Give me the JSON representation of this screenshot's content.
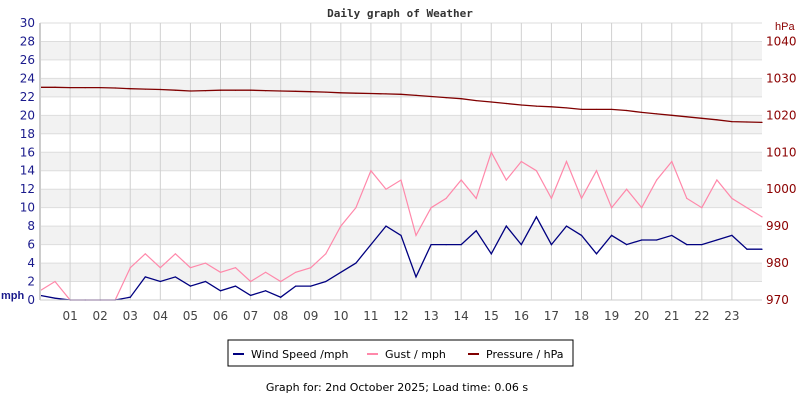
{
  "chart_data": {
    "type": "line",
    "title": "Daily graph of Weather",
    "ylabel_left": "mph",
    "ylabel_right": "hPa",
    "ylim_left": [
      0,
      30
    ],
    "ylim_right": [
      970,
      1045
    ],
    "xlim": [
      0,
      24
    ],
    "grid": true,
    "legend_position": "bottom",
    "x_tick_labels": [
      "01",
      "02",
      "03",
      "04",
      "05",
      "06",
      "07",
      "08",
      "09",
      "10",
      "11",
      "12",
      "13",
      "14",
      "15",
      "16",
      "17",
      "18",
      "19",
      "20",
      "21",
      "22",
      "23"
    ],
    "y_left_ticks": [
      0,
      2,
      4,
      6,
      8,
      10,
      12,
      14,
      16,
      18,
      20,
      22,
      24,
      26,
      28,
      30
    ],
    "y_right_ticks": [
      970,
      980,
      990,
      1000,
      1010,
      1020,
      1030,
      1040
    ],
    "x": [
      0,
      0.5,
      1,
      1.5,
      2,
      2.5,
      3,
      3.5,
      4,
      4.5,
      5,
      5.5,
      6,
      6.5,
      7,
      7.5,
      8,
      8.5,
      9,
      9.5,
      10,
      10.5,
      11,
      11.5,
      12,
      12.5,
      13,
      13.5,
      14,
      14.5,
      15,
      15.5,
      16,
      16.5,
      17,
      17.5,
      18,
      18.5,
      19,
      19.5,
      20,
      20.5,
      21,
      21.5,
      22,
      22.5,
      23,
      23.5,
      24
    ],
    "series": [
      {
        "name": "Wind Speed /mph",
        "axis": "left",
        "color": "#000080",
        "values": [
          0.5,
          0.2,
          0,
          0,
          0,
          0,
          0.3,
          2.5,
          2,
          2.5,
          1.5,
          2,
          1,
          1.5,
          0.5,
          1,
          0.3,
          1.5,
          1.5,
          2,
          3,
          4,
          6,
          8,
          7,
          2.5,
          6,
          6,
          6,
          7.5,
          5,
          8,
          6,
          9,
          6,
          8,
          7,
          5,
          7,
          6,
          6.5,
          6.5,
          7,
          6,
          6,
          6.5,
          7,
          5.5,
          5.5
        ]
      },
      {
        "name": "Gust / mph",
        "axis": "left",
        "color": "#ff88aa",
        "values": [
          1,
          2,
          0,
          0,
          0,
          0,
          3.5,
          5,
          3.5,
          5,
          3.5,
          4,
          3,
          3.5,
          2,
          3,
          2,
          3,
          3.5,
          5,
          8,
          10,
          14,
          12,
          13,
          7,
          10,
          11,
          13,
          11,
          16,
          13,
          15,
          14,
          11,
          15,
          11,
          14,
          10,
          12,
          10,
          13,
          15,
          11,
          10,
          13,
          11,
          10,
          9
        ]
      },
      {
        "name": "Pressure / hPa",
        "axis": "right",
        "color": "#800000",
        "values": [
          1027.6,
          1027.6,
          1027.5,
          1027.5,
          1027.5,
          1027.4,
          1027.2,
          1027.1,
          1027.0,
          1026.8,
          1026.6,
          1026.7,
          1026.8,
          1026.8,
          1026.8,
          1026.7,
          1026.6,
          1026.5,
          1026.4,
          1026.3,
          1026.1,
          1026.0,
          1025.9,
          1025.8,
          1025.7,
          1025.4,
          1025.1,
          1024.8,
          1024.5,
          1024.0,
          1023.6,
          1023.2,
          1022.8,
          1022.5,
          1022.3,
          1022.0,
          1021.6,
          1021.6,
          1021.6,
          1021.3,
          1020.8,
          1020.4,
          1020.0,
          1019.6,
          1019.2,
          1018.8,
          1018.3,
          1018.2,
          1018.1
        ]
      }
    ]
  },
  "footer": "Graph for: 2nd October 2025; Load time: 0.06 s"
}
